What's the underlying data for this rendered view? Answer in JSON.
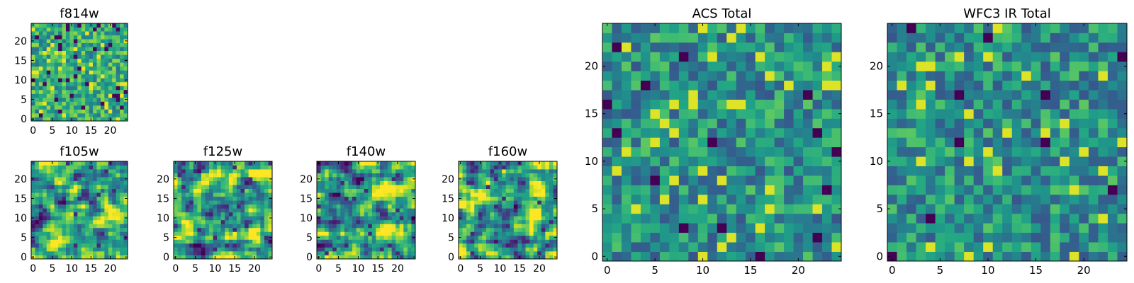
{
  "chart_data": [
    {
      "type": "heatmap",
      "title": "f814w",
      "grid_size": 25,
      "xticks": [
        0,
        5,
        10,
        15,
        20
      ],
      "yticks": [
        0,
        5,
        10,
        15,
        20
      ],
      "xlim": [
        -0.5,
        24.5
      ],
      "ylim": [
        -0.5,
        24.5
      ],
      "colormap": "viridis",
      "texture": "speckled",
      "seed": 814
    },
    {
      "type": "heatmap",
      "title": "f105w",
      "grid_size": 25,
      "xticks": [
        0,
        5,
        10,
        15,
        20
      ],
      "yticks": [
        0,
        5,
        10,
        15,
        20
      ],
      "xlim": [
        -0.5,
        24.5
      ],
      "ylim": [
        -0.5,
        24.5
      ],
      "colormap": "viridis",
      "texture": "smooth-bright",
      "seed": 105
    },
    {
      "type": "heatmap",
      "title": "f125w",
      "grid_size": 25,
      "xticks": [
        0,
        5,
        10,
        15,
        20
      ],
      "yticks": [
        0,
        5,
        10,
        15,
        20
      ],
      "xlim": [
        -0.5,
        24.5
      ],
      "ylim": [
        -0.5,
        24.5
      ],
      "colormap": "viridis",
      "texture": "smooth-bright",
      "seed": 125
    },
    {
      "type": "heatmap",
      "title": "f140w",
      "grid_size": 25,
      "xticks": [
        0,
        5,
        10,
        15,
        20
      ],
      "yticks": [
        0,
        5,
        10,
        15,
        20
      ],
      "xlim": [
        -0.5,
        24.5
      ],
      "ylim": [
        -0.5,
        24.5
      ],
      "colormap": "viridis",
      "texture": "smooth-bright",
      "seed": 140
    },
    {
      "type": "heatmap",
      "title": "f160w",
      "grid_size": 25,
      "xticks": [
        0,
        5,
        10,
        15,
        20
      ],
      "yticks": [
        0,
        5,
        10,
        15,
        20
      ],
      "xlim": [
        -0.5,
        24.5
      ],
      "ylim": [
        -0.5,
        24.5
      ],
      "colormap": "viridis",
      "texture": "smooth-bright",
      "seed": 160
    },
    {
      "type": "heatmap",
      "title": "ACS Total",
      "grid_size": 25,
      "xticks": [
        0,
        5,
        10,
        15,
        20
      ],
      "yticks": [
        0,
        5,
        10,
        15,
        20
      ],
      "xlim": [
        -0.5,
        24.5
      ],
      "ylim": [
        -0.5,
        24.5
      ],
      "colormap": "viridis",
      "texture": "flat-green",
      "seed": 1001
    },
    {
      "type": "heatmap",
      "title": "WFC3 IR Total",
      "grid_size": 25,
      "xticks": [
        0,
        5,
        10,
        15,
        20
      ],
      "yticks": [
        0,
        5,
        10,
        15,
        20
      ],
      "xlim": [
        -0.5,
        24.5
      ],
      "ylim": [
        -0.5,
        24.5
      ],
      "colormap": "viridis",
      "texture": "flat-green",
      "seed": 2002
    }
  ]
}
